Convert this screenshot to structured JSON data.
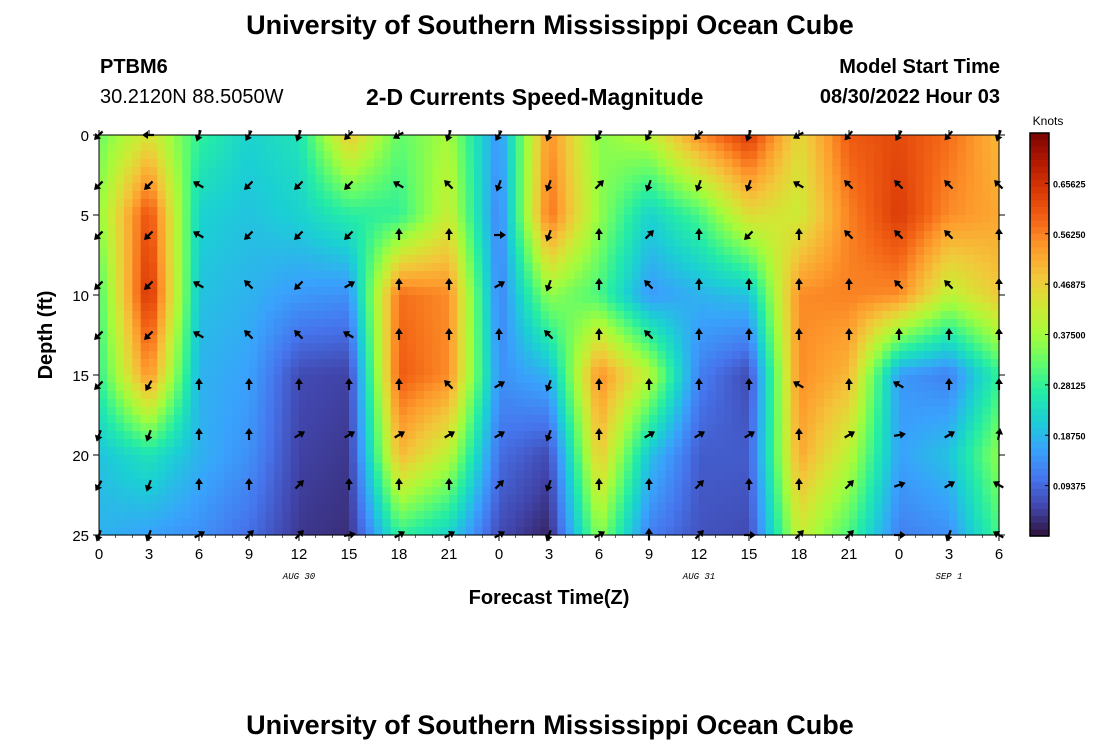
{
  "page_title": "University of Southern Mississippi Ocean Cube",
  "bottom_title": "University of Southern Mississippi Ocean Cube",
  "station": {
    "id": "PTBM6",
    "coords": "30.2120N  88.5050W"
  },
  "model": {
    "label": "Model Start Time",
    "time": "08/30/2022 Hour 03"
  },
  "chart_data": {
    "type": "heatmap",
    "title": "2-D Currents Speed-Magnitude",
    "xlabel": "Forecast Time(Z)",
    "ylabel": "Depth (ft)",
    "x_ticks": [
      "0",
      "3",
      "6",
      "9",
      "12",
      "15",
      "18",
      "21",
      "0",
      "3",
      "6",
      "9",
      "12",
      "15",
      "18",
      "21",
      "0",
      "3",
      "6"
    ],
    "x_range_hours": [
      0,
      54
    ],
    "y_ticks": [
      "0",
      "5",
      "10",
      "15",
      "20",
      "25"
    ],
    "y_range_ft": [
      0,
      25
    ],
    "date_labels": [
      {
        "label": "AUG 30",
        "hour": 12
      },
      {
        "label": "AUG 31",
        "hour": 36
      },
      {
        "label": "SEP 1",
        "hour": 51
      }
    ],
    "colorbar": {
      "unit": "Knots",
      "range": [
        0.0,
        0.75
      ],
      "ticks": [
        "0.65625",
        "0.56250",
        "0.46875",
        "0.37500",
        "0.28125",
        "0.18750",
        "0.09375"
      ],
      "colors": [
        "#30123b",
        "#4145ab",
        "#4675ed",
        "#39a2fc",
        "#1bcfd4",
        "#24eca6",
        "#61fc6c",
        "#a4fc3b",
        "#d1e834",
        "#f3c63a",
        "#fe9b2d",
        "#f36315",
        "#d93806",
        "#b11901",
        "#7a0403"
      ]
    },
    "time_hours": [
      0,
      3,
      6,
      9,
      12,
      15,
      18,
      21,
      24,
      27,
      30,
      33,
      36,
      39,
      42,
      45,
      48,
      51,
      54
    ],
    "depth_ft": [
      0,
      5,
      10,
      15,
      20,
      25
    ],
    "speed_knots": [
      [
        0.33,
        0.44,
        0.28,
        0.22,
        0.25,
        0.48,
        0.32,
        0.38,
        0.14,
        0.55,
        0.35,
        0.4,
        0.55,
        0.64,
        0.45,
        0.6,
        0.62,
        0.58,
        0.5
      ],
      [
        0.36,
        0.62,
        0.22,
        0.2,
        0.22,
        0.27,
        0.28,
        0.42,
        0.12,
        0.58,
        0.36,
        0.22,
        0.3,
        0.45,
        0.42,
        0.56,
        0.64,
        0.55,
        0.52
      ],
      [
        0.3,
        0.66,
        0.2,
        0.18,
        0.15,
        0.14,
        0.58,
        0.55,
        0.12,
        0.36,
        0.3,
        0.15,
        0.18,
        0.2,
        0.55,
        0.56,
        0.55,
        0.4,
        0.48
      ],
      [
        0.28,
        0.55,
        0.18,
        0.16,
        0.06,
        0.05,
        0.6,
        0.55,
        0.14,
        0.18,
        0.55,
        0.4,
        0.12,
        0.06,
        0.55,
        0.5,
        0.15,
        0.12,
        0.28
      ],
      [
        0.2,
        0.25,
        0.18,
        0.14,
        0.05,
        0.04,
        0.5,
        0.4,
        0.1,
        0.06,
        0.48,
        0.2,
        0.08,
        0.08,
        0.52,
        0.4,
        0.16,
        0.2,
        0.36
      ],
      [
        0.18,
        0.16,
        0.14,
        0.1,
        0.04,
        0.03,
        0.28,
        0.22,
        0.06,
        0.02,
        0.36,
        0.12,
        0.07,
        0.06,
        0.42,
        0.3,
        0.12,
        0.14,
        0.3
      ]
    ],
    "arrows_deg": [
      [
        225,
        270,
        200,
        210,
        200,
        225,
        240,
        200,
        210,
        200,
        210,
        210,
        225,
        200,
        240,
        220,
        210,
        220,
        200
      ],
      [
        225,
        225,
        300,
        225,
        225,
        225,
        300,
        315,
        200,
        200,
        45,
        200,
        200,
        200,
        300,
        315,
        315,
        315,
        315
      ],
      [
        225,
        225,
        300,
        225,
        225,
        225,
        0,
        0,
        90,
        200,
        0,
        45,
        0,
        225,
        0,
        315,
        315,
        315,
        0
      ],
      [
        225,
        225,
        300,
        315,
        225,
        60,
        0,
        0,
        60,
        200,
        0,
        315,
        0,
        0,
        0,
        0,
        315,
        315,
        0
      ],
      [
        225,
        225,
        300,
        315,
        315,
        300,
        0,
        0,
        0,
        315,
        0,
        315,
        0,
        0,
        0,
        0,
        0,
        0,
        0
      ],
      [
        225,
        210,
        0,
        0,
        0,
        0,
        0,
        315,
        60,
        200,
        0,
        0,
        0,
        0,
        300,
        0,
        300,
        0,
        0
      ],
      [
        200,
        200,
        0,
        0,
        60,
        60,
        60,
        60,
        60,
        200,
        0,
        60,
        60,
        60,
        0,
        60,
        80,
        60,
        10
      ],
      [
        210,
        200,
        0,
        0,
        45,
        0,
        0,
        0,
        45,
        200,
        0,
        0,
        45,
        0,
        0,
        45,
        70,
        60,
        300
      ],
      [
        200,
        200,
        60,
        45,
        45,
        80,
        60,
        60,
        60,
        200,
        60,
        0,
        45,
        90,
        45,
        45,
        90,
        200,
        300
      ]
    ]
  }
}
